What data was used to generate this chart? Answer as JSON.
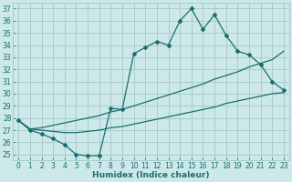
{
  "xlabel": "Humidex (Indice chaleur)",
  "bg_color": "#cce8e8",
  "grid_color": "#aacccc",
  "line_color": "#1a6e6e",
  "xlim": [
    -0.5,
    23.5
  ],
  "ylim": [
    24.5,
    37.5
  ],
  "xticks": [
    0,
    1,
    2,
    3,
    4,
    5,
    6,
    7,
    8,
    9,
    10,
    11,
    12,
    13,
    14,
    15,
    16,
    17,
    18,
    19,
    20,
    21,
    22,
    23
  ],
  "yticks": [
    25,
    26,
    27,
    28,
    29,
    30,
    31,
    32,
    33,
    34,
    35,
    36,
    37
  ],
  "line1_x": [
    0,
    1,
    2,
    3,
    4,
    5,
    6,
    7,
    8,
    9,
    10,
    11,
    12,
    13,
    14,
    15,
    16,
    17,
    18,
    19,
    20,
    21,
    22,
    23
  ],
  "line1_y": [
    27.8,
    27.0,
    26.7,
    26.3,
    25.8,
    25.0,
    24.9,
    24.9,
    28.8,
    28.7,
    33.3,
    33.8,
    34.3,
    34.0,
    36.0,
    37.0,
    35.3,
    36.5,
    34.8,
    33.5,
    33.2,
    32.4,
    31.0,
    30.3
  ],
  "line2_x": [
    0,
    1,
    2,
    3,
    4,
    5,
    6,
    7,
    8,
    9,
    10,
    11,
    12,
    13,
    14,
    15,
    16,
    17,
    18,
    19,
    20,
    21,
    22,
    23
  ],
  "line2_y": [
    27.8,
    27.1,
    27.2,
    27.4,
    27.6,
    27.8,
    28.0,
    28.2,
    28.5,
    28.7,
    29.0,
    29.3,
    29.6,
    29.9,
    30.2,
    30.5,
    30.8,
    31.2,
    31.5,
    31.8,
    32.2,
    32.5,
    32.8,
    33.5
  ],
  "line3_x": [
    0,
    1,
    2,
    3,
    4,
    5,
    6,
    7,
    8,
    9,
    10,
    11,
    12,
    13,
    14,
    15,
    16,
    17,
    18,
    19,
    20,
    21,
    22,
    23
  ],
  "line3_y": [
    27.8,
    27.1,
    27.0,
    26.9,
    26.8,
    26.8,
    26.9,
    27.0,
    27.2,
    27.3,
    27.5,
    27.7,
    27.9,
    28.1,
    28.3,
    28.5,
    28.7,
    28.9,
    29.2,
    29.4,
    29.6,
    29.8,
    30.0,
    30.1
  ]
}
